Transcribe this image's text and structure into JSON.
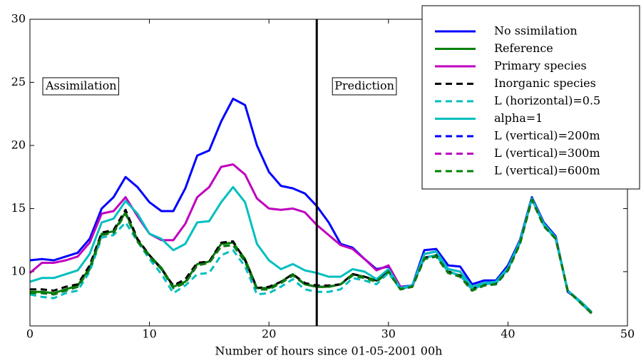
{
  "chart_data": {
    "type": "line",
    "xlabel": "Number of hours since 01-05-2001 00h",
    "x": [
      0,
      1,
      2,
      3,
      4,
      5,
      6,
      7,
      8,
      9,
      10,
      11,
      12,
      13,
      14,
      15,
      16,
      17,
      18,
      19,
      20,
      21,
      22,
      23,
      24,
      25,
      26,
      27,
      28,
      29,
      30,
      31,
      32,
      33,
      34,
      35,
      36,
      37,
      38,
      39,
      40,
      41,
      42,
      43,
      44,
      45,
      46,
      47
    ],
    "xlim": [
      0,
      50
    ],
    "xticks": [
      0,
      10,
      20,
      30,
      40,
      50
    ],
    "ylim": [
      5.7,
      30
    ],
    "yticks": [
      10,
      15,
      20,
      25,
      30
    ],
    "vline": 24,
    "annotations": [
      "Assimilation",
      "Prediction"
    ],
    "legend": "upper right",
    "series": [
      {
        "name": "No ssimilation",
        "color": "#0000ff",
        "style": "solid",
        "values": [
          10.9,
          11.0,
          10.9,
          11.2,
          11.5,
          12.6,
          15.0,
          15.9,
          17.5,
          16.7,
          15.5,
          14.8,
          14.8,
          16.6,
          19.2,
          19.6,
          21.9,
          23.7,
          23.2,
          20.0,
          17.9,
          16.8,
          16.6,
          16.2,
          15.2,
          13.9,
          12.2,
          11.9,
          11.0,
          10.2,
          10.4,
          8.8,
          8.9,
          11.7,
          11.8,
          10.5,
          10.4,
          9.0,
          9.3,
          9.3,
          10.5,
          12.5,
          15.9,
          13.9,
          12.8,
          8.4,
          7.7,
          6.8
        ]
      },
      {
        "name": "Reference",
        "color": "#008000",
        "style": "solid",
        "values": [
          8.4,
          8.4,
          8.3,
          8.6,
          8.9,
          10.3,
          13.0,
          13.2,
          14.7,
          12.5,
          11.3,
          10.3,
          8.8,
          9.2,
          10.6,
          10.8,
          12.2,
          12.3,
          11.0,
          8.7,
          8.7,
          9.2,
          9.8,
          9.0,
          8.8,
          8.8,
          9.0,
          9.8,
          9.6,
          9.3,
          10.1,
          8.6,
          8.9,
          11.1,
          11.3,
          10.0,
          9.7,
          8.6,
          9.0,
          9.1,
          10.2,
          12.3,
          15.8,
          13.7,
          12.6,
          8.5,
          7.6,
          6.7
        ]
      },
      {
        "name": "Primary species",
        "color": "#bf00bf",
        "style": "solid",
        "values": [
          9.9,
          10.7,
          10.7,
          10.9,
          11.2,
          12.3,
          14.6,
          14.8,
          15.9,
          14.4,
          13.0,
          12.5,
          12.5,
          13.8,
          15.9,
          16.7,
          18.3,
          18.5,
          17.7,
          15.8,
          15.0,
          14.9,
          15.0,
          14.7,
          13.7,
          12.9,
          12.1,
          11.8,
          11.0,
          10.1,
          10.5,
          8.8,
          8.8,
          11.4,
          11.6,
          10.2,
          10.0,
          8.8,
          9.1,
          9.2,
          10.3,
          12.4,
          15.8,
          13.8,
          12.7,
          8.5,
          7.7,
          6.8
        ]
      },
      {
        "name": "Inorganic species",
        "color": "#000000",
        "style": "dashed",
        "values": [
          8.6,
          8.6,
          8.5,
          8.8,
          9.0,
          10.5,
          13.1,
          13.3,
          14.9,
          12.6,
          11.3,
          10.2,
          8.9,
          9.4,
          10.7,
          10.8,
          12.3,
          12.4,
          10.9,
          8.7,
          8.8,
          9.2,
          9.8,
          9.1,
          8.9,
          8.9,
          9.0,
          9.8,
          9.6,
          9.3,
          10.1,
          8.6,
          8.9,
          11.1,
          11.3,
          10.0,
          9.7,
          8.6,
          9.0,
          9.1,
          10.2,
          12.3,
          15.8,
          13.7,
          12.6,
          8.5,
          7.6,
          6.7
        ]
      },
      {
        "name": "L (horizontal)=0.5",
        "color": "#00bfbf",
        "style": "dashed",
        "values": [
          8.2,
          8.0,
          7.9,
          8.3,
          8.5,
          10.0,
          12.7,
          12.9,
          13.9,
          12.4,
          11.0,
          9.8,
          8.3,
          8.9,
          9.8,
          9.9,
          11.3,
          11.7,
          10.4,
          8.2,
          8.3,
          8.8,
          9.4,
          8.6,
          8.4,
          8.4,
          8.6,
          9.5,
          9.3,
          9.0,
          9.9,
          8.6,
          8.9,
          11.1,
          11.3,
          10.0,
          9.7,
          8.6,
          9.0,
          9.1,
          10.2,
          12.3,
          15.8,
          13.7,
          12.6,
          8.5,
          7.6,
          6.7
        ]
      },
      {
        "name": "alpha=1",
        "color": "#00bfbf",
        "style": "solid",
        "values": [
          9.2,
          9.5,
          9.5,
          9.8,
          10.1,
          11.4,
          13.9,
          14.2,
          15.6,
          14.6,
          13.0,
          12.6,
          11.7,
          12.2,
          13.9,
          14.0,
          15.5,
          16.7,
          15.5,
          12.2,
          10.9,
          10.2,
          10.6,
          10.1,
          9.9,
          9.6,
          9.6,
          10.2,
          10.0,
          9.4,
          10.2,
          8.7,
          8.9,
          11.4,
          11.6,
          10.2,
          10.0,
          8.8,
          9.1,
          9.2,
          10.3,
          12.4,
          15.8,
          13.8,
          12.7,
          8.5,
          7.7,
          6.8
        ]
      },
      {
        "name": "L (vertical)=200m",
        "color": "#0000ff",
        "style": "dashed",
        "values": [
          8.3,
          8.3,
          8.2,
          8.5,
          8.8,
          10.2,
          12.9,
          13.1,
          14.6,
          12.4,
          11.2,
          10.2,
          8.7,
          9.1,
          10.5,
          10.7,
          12.0,
          12.1,
          10.8,
          8.6,
          8.6,
          9.1,
          9.7,
          9.0,
          8.8,
          8.8,
          9.0,
          9.7,
          9.5,
          9.2,
          10.0,
          8.6,
          8.8,
          11.0,
          11.2,
          9.9,
          9.6,
          8.5,
          8.9,
          9.0,
          10.1,
          12.2,
          15.7,
          13.6,
          12.6,
          8.5,
          7.6,
          6.7
        ]
      },
      {
        "name": "L (vertical)=300m",
        "color": "#bf00bf",
        "style": "dashed",
        "values": [
          8.3,
          8.3,
          8.2,
          8.5,
          8.8,
          10.2,
          12.9,
          13.1,
          14.6,
          12.4,
          11.2,
          10.2,
          8.7,
          9.1,
          10.5,
          10.7,
          12.0,
          12.1,
          10.8,
          8.6,
          8.6,
          9.1,
          9.7,
          9.0,
          8.8,
          8.8,
          9.0,
          9.7,
          9.5,
          9.2,
          10.0,
          8.6,
          8.8,
          11.0,
          11.2,
          9.9,
          9.6,
          8.5,
          8.9,
          9.0,
          10.1,
          12.2,
          15.7,
          13.6,
          12.6,
          8.5,
          7.6,
          6.7
        ]
      },
      {
        "name": "L (vertical)=600m",
        "color": "#008000",
        "style": "dashed",
        "values": [
          8.3,
          8.3,
          8.2,
          8.5,
          8.8,
          10.2,
          12.9,
          13.1,
          14.6,
          12.4,
          11.2,
          10.2,
          8.7,
          9.1,
          10.5,
          10.7,
          12.0,
          12.1,
          10.8,
          8.6,
          8.6,
          9.1,
          9.7,
          9.0,
          8.8,
          8.8,
          9.0,
          9.7,
          9.5,
          9.2,
          10.0,
          8.6,
          8.8,
          11.0,
          11.2,
          9.9,
          9.6,
          8.5,
          8.9,
          9.0,
          10.1,
          12.2,
          15.7,
          13.6,
          12.6,
          8.5,
          7.6,
          6.7
        ]
      }
    ]
  }
}
